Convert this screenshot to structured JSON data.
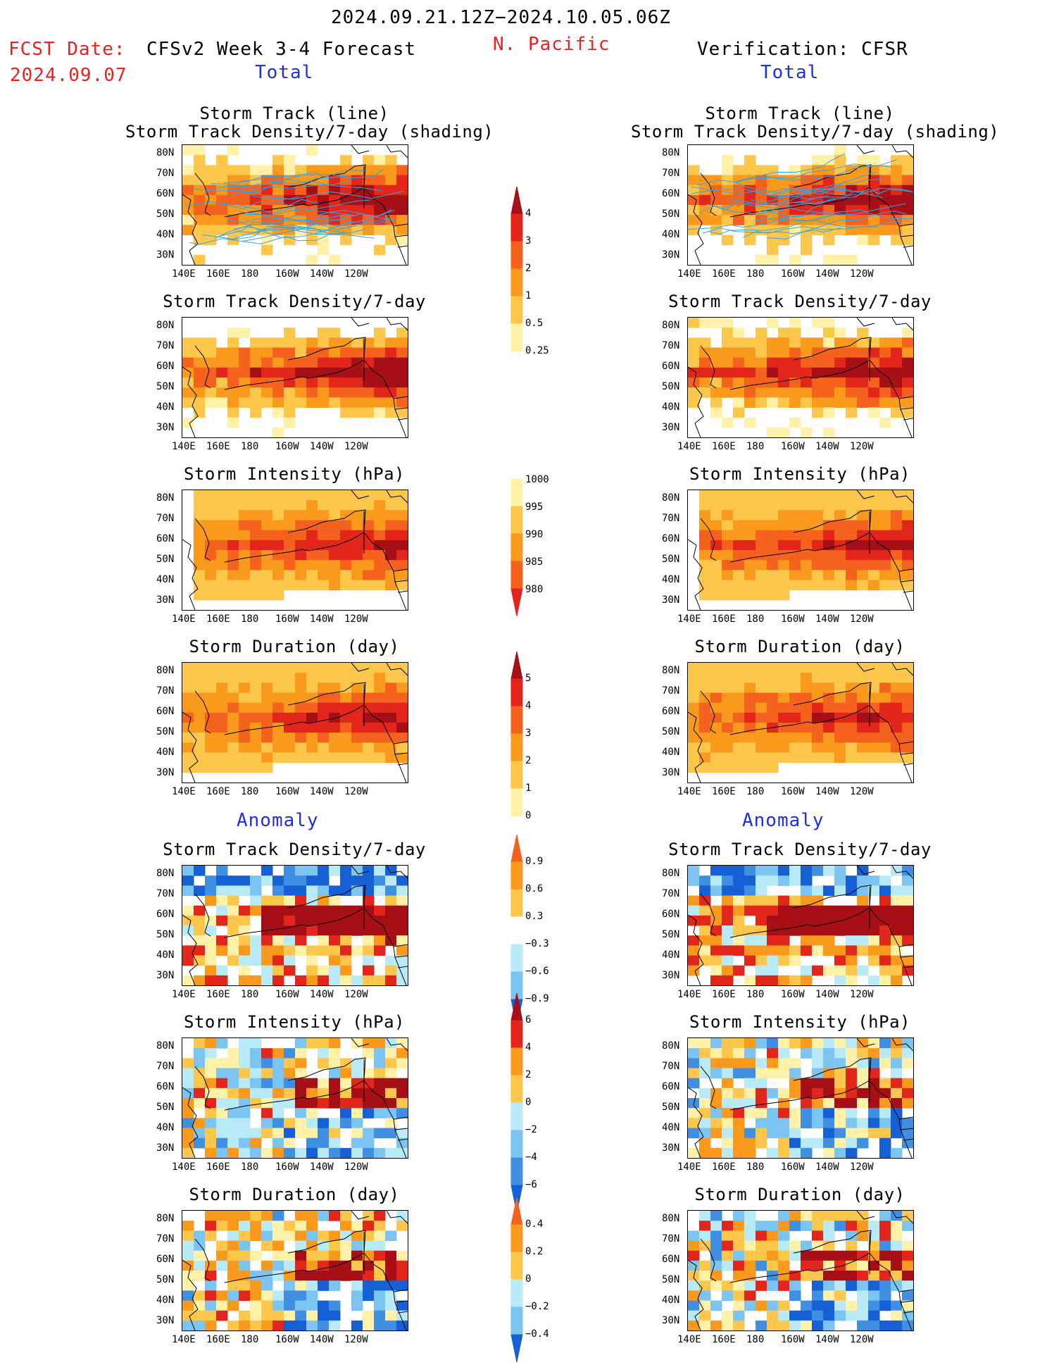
{
  "header": {
    "date_range": "2024.09.21.12Z−2024.10.05.06Z",
    "fcst_label": "FCST Date:",
    "fcst_date": "2024.09.07",
    "model_title": "CFSv2 Week 3-4 Forecast",
    "region": "N. Pacific",
    "verification": "Verification: CFSR"
  },
  "sections": {
    "total_left": "Total",
    "total_right": "Total",
    "anomaly_left": "Anomaly",
    "anomaly_right": "Anomaly"
  },
  "panel_titles": {
    "track_line": "Storm Track (line)",
    "track_density_shading": "Storm Track Density/7-day (shading)",
    "track_density": "Storm Track Density/7-day",
    "intensity": "Storm Intensity (hPa)",
    "duration": "Storm Duration (day)"
  },
  "axes": {
    "lat_labels": [
      "80N",
      "70N",
      "60N",
      "50N",
      "40N",
      "30N"
    ],
    "lon_labels": [
      "140E",
      "160E",
      "180",
      "160W",
      "140W",
      "120W"
    ]
  },
  "colorbars": {
    "density": [
      "4",
      "3",
      "2",
      "1",
      "0.5",
      "0.25"
    ],
    "intensity": [
      "1000",
      "995",
      "990",
      "985",
      "980"
    ],
    "duration": [
      "5",
      "4",
      "3",
      "2",
      "1",
      "0"
    ],
    "density_anom": [
      "0.9",
      "0.6",
      "0.3",
      "−0.3",
      "−0.6",
      "−0.9"
    ],
    "intensity_anom": [
      "6",
      "4",
      "2",
      "0",
      "−2",
      "−4",
      "−6"
    ],
    "duration_anom": [
      "0.4",
      "0.2",
      "0",
      "−0.2",
      "−0.4"
    ]
  },
  "colors": {
    "dark_red": "#a50f15",
    "red": "#e2261b",
    "orange_red": "#f4621d",
    "orange": "#f99a1c",
    "light_orange": "#fdc74c",
    "pale_yellow": "#fff1a8",
    "light_blue": "#b9eaf8",
    "mid_blue": "#7cc4f2",
    "blue": "#3f8fe3",
    "dark_blue": "#1660d5",
    "track_line": "#37a3e0"
  }
}
